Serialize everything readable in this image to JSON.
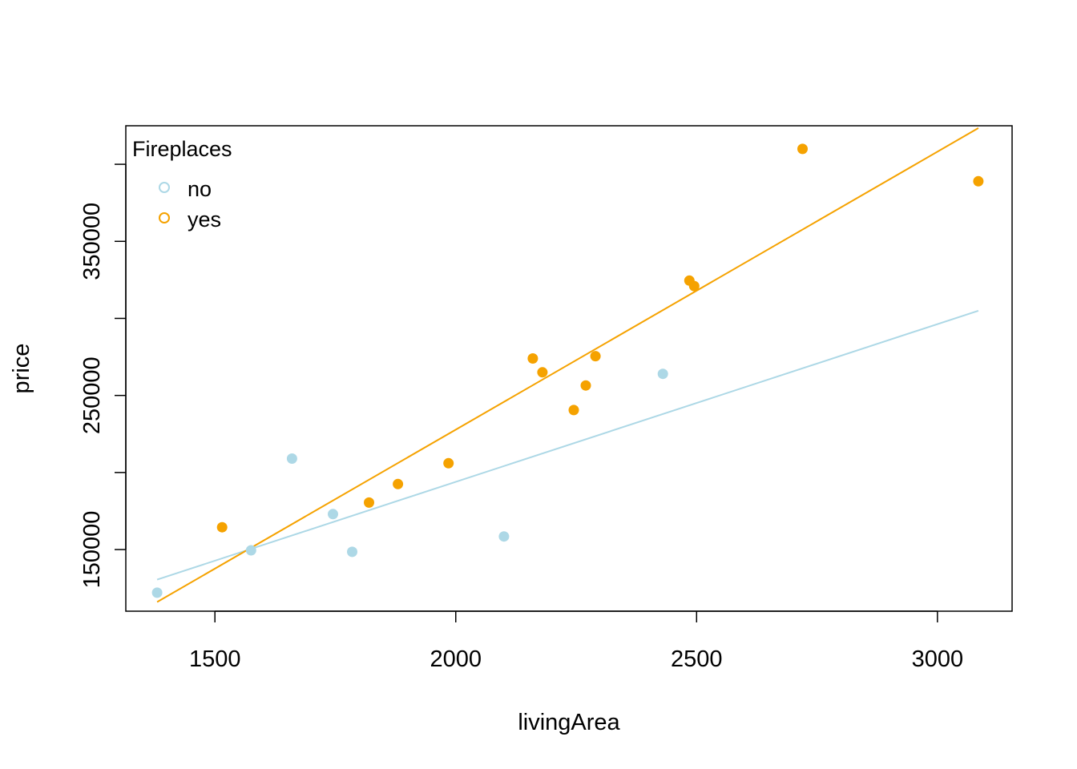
{
  "chart_data": {
    "type": "scatter",
    "title": "",
    "xlabel": "livingArea",
    "ylabel": "price",
    "xlim": [
      1315,
      3155
    ],
    "ylim": [
      110000,
      425000
    ],
    "x_ticks": [
      1500,
      2000,
      2500,
      3000
    ],
    "x_tick_labels": [
      "1500",
      "2000",
      "2500",
      "3000"
    ],
    "y_ticks": [
      150000,
      200000,
      250000,
      300000,
      350000,
      400000
    ],
    "y_tick_labels": [
      "150000",
      "",
      "250000",
      "",
      "350000",
      ""
    ],
    "grid": false,
    "legend": {
      "title": "Fireplaces",
      "placement": "top-left",
      "entries": [
        {
          "label": "no",
          "color": "#add8e6"
        },
        {
          "label": "yes",
          "color": "#f5a200"
        }
      ]
    },
    "series": [
      {
        "name": "no",
        "color": "#add8e6",
        "points": [
          {
            "x": 1380,
            "y": 122000
          },
          {
            "x": 1575,
            "y": 149500
          },
          {
            "x": 1660,
            "y": 209000
          },
          {
            "x": 1745,
            "y": 173000
          },
          {
            "x": 1785,
            "y": 148500
          },
          {
            "x": 2100,
            "y": 158500
          },
          {
            "x": 2430,
            "y": 264000
          }
        ],
        "fit_line": {
          "x": [
            1380,
            3085
          ],
          "y": [
            130500,
            305000
          ]
        }
      },
      {
        "name": "yes",
        "color": "#f5a200",
        "points": [
          {
            "x": 1515,
            "y": 164500
          },
          {
            "x": 1820,
            "y": 180500
          },
          {
            "x": 1880,
            "y": 192500
          },
          {
            "x": 1985,
            "y": 206000
          },
          {
            "x": 2160,
            "y": 274000
          },
          {
            "x": 2180,
            "y": 265000
          },
          {
            "x": 2245,
            "y": 240500
          },
          {
            "x": 2270,
            "y": 256500
          },
          {
            "x": 2290,
            "y": 275500
          },
          {
            "x": 2485,
            "y": 324500
          },
          {
            "x": 2495,
            "y": 321000
          },
          {
            "x": 2720,
            "y": 410000
          },
          {
            "x": 3085,
            "y": 389000
          }
        ],
        "fit_line": {
          "x": [
            1380,
            3085
          ],
          "y": [
            116000,
            423500
          ]
        }
      }
    ]
  }
}
